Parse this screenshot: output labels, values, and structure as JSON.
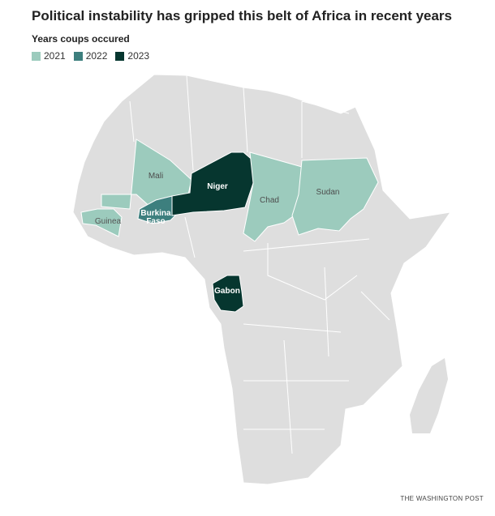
{
  "title": "Political instability has gripped this belt of Africa in recent years",
  "legend": {
    "title": "Years coups occured",
    "items": [
      {
        "label": "2021",
        "color": "#9ccbbd"
      },
      {
        "label": "2022",
        "color": "#3d7f7e"
      },
      {
        "label": "2023",
        "color": "#06362f"
      }
    ]
  },
  "colors": {
    "land": "#dedede",
    "border": "#ffffff"
  },
  "countries": {
    "mali": {
      "label": "Mali",
      "year": "2021"
    },
    "guinea": {
      "label": "Guinea",
      "year": "2021"
    },
    "burkina_faso": {
      "label": "Burkina Faso",
      "line1": "Burkina",
      "line2": "Faso",
      "year": "2022"
    },
    "niger": {
      "label": "Niger",
      "year": "2023"
    },
    "chad": {
      "label": "Chad",
      "year": "2021"
    },
    "sudan": {
      "label": "Sudan",
      "year": "2021"
    },
    "gabon": {
      "label": "Gabon",
      "year": "2023"
    }
  },
  "credit": "THE WASHINGTON POST"
}
